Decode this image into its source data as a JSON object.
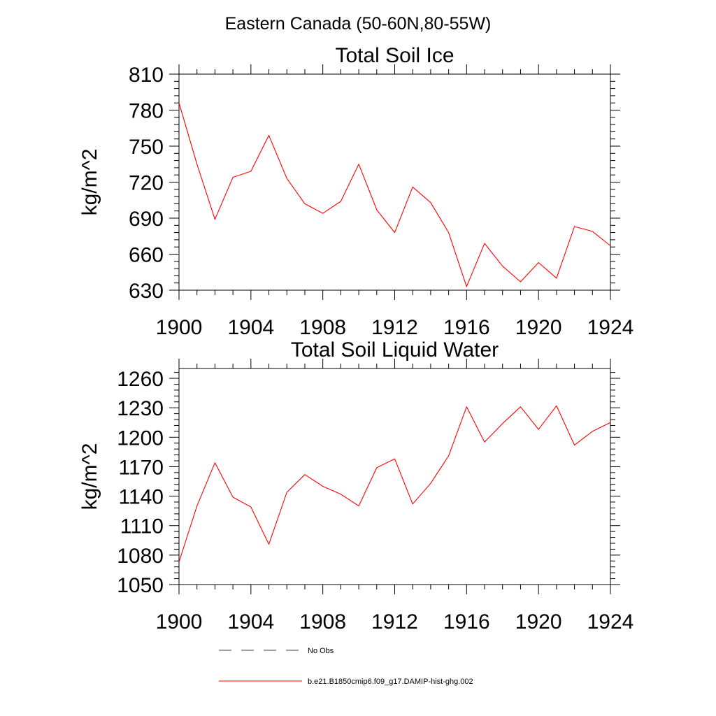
{
  "page": {
    "title": "Eastern Canada (50-60N,80-55W)"
  },
  "legend": {
    "items": [
      {
        "label": "No Obs",
        "style": "dashed",
        "color": "#3d3d5c"
      },
      {
        "label": "b.e21.B1850cmip6.f09_g17.DAMIP-hist-ghg.002",
        "style": "solid",
        "color": "#ff0000"
      }
    ]
  },
  "chart_data": [
    {
      "type": "line",
      "title": "Total Soil Ice",
      "xlabel": "",
      "ylabel": "kg/m^2",
      "xlim": [
        1900,
        1924
      ],
      "ylim": [
        630,
        810
      ],
      "x_ticks": [
        1900,
        1904,
        1908,
        1912,
        1916,
        1920,
        1924
      ],
      "y_ticks": [
        630,
        660,
        690,
        720,
        750,
        780,
        810
      ],
      "grid": false,
      "line_color": "#ff0000",
      "series": [
        {
          "x": [
            1900,
            1901,
            1902,
            1903,
            1904,
            1905,
            1906,
            1907,
            1908,
            1909,
            1910,
            1911,
            1912,
            1913,
            1914,
            1915,
            1916,
            1917,
            1918,
            1919,
            1920,
            1921,
            1922,
            1923,
            1924
          ],
          "values": [
            786,
            735,
            689,
            724,
            729,
            759,
            723,
            702,
            694,
            704,
            735,
            697,
            678,
            716,
            703,
            678,
            633,
            669,
            650,
            637,
            653,
            640,
            683,
            679,
            667
          ]
        }
      ]
    },
    {
      "type": "line",
      "title": "Total Soil Liquid Water",
      "xlabel": "",
      "ylabel": "kg/m^2",
      "xlim": [
        1900,
        1924
      ],
      "ylim": [
        1050,
        1270
      ],
      "x_ticks": [
        1900,
        1904,
        1908,
        1912,
        1916,
        1920,
        1924
      ],
      "y_ticks": [
        1050,
        1080,
        1110,
        1140,
        1170,
        1200,
        1230,
        1260
      ],
      "grid": false,
      "line_color": "#ff0000",
      "series": [
        {
          "x": [
            1900,
            1901,
            1902,
            1903,
            1904,
            1905,
            1906,
            1907,
            1908,
            1909,
            1910,
            1911,
            1912,
            1913,
            1914,
            1915,
            1916,
            1917,
            1918,
            1919,
            1920,
            1921,
            1922,
            1923,
            1924
          ],
          "values": [
            1073,
            1130,
            1174,
            1139,
            1129,
            1091,
            1144,
            1162,
            1150,
            1142,
            1130,
            1169,
            1178,
            1132,
            1153,
            1181,
            1231,
            1195,
            1214,
            1231,
            1208,
            1232,
            1192,
            1206,
            1215
          ]
        }
      ]
    }
  ]
}
